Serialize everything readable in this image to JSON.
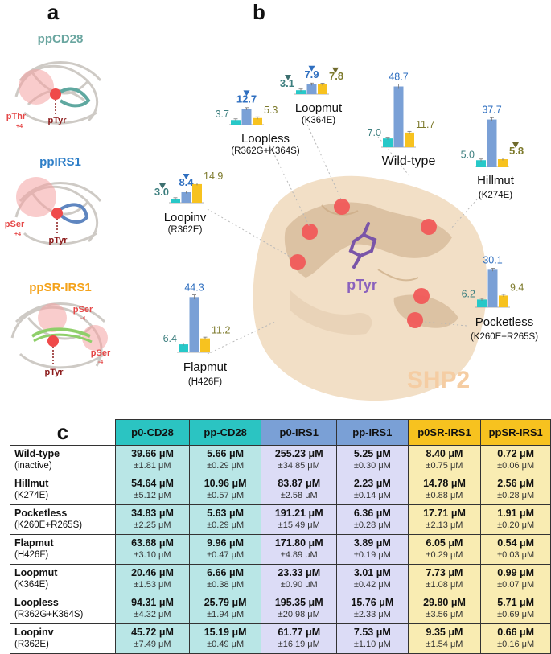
{
  "panels": {
    "a": "a",
    "b": "b",
    "c": "c"
  },
  "panel_a": {
    "structures": [
      {
        "title": "ppCD28",
        "color": "#6aa6a0",
        "pocket_label": "pThr",
        "pocket_sub": "+4",
        "center_label": "pTyr"
      },
      {
        "title": "ppIRS1",
        "color": "#2f7fc8",
        "pocket_label": "pSer",
        "pocket_sub": "+4",
        "center_label": "pTyr"
      },
      {
        "title": "ppSR-IRS1",
        "color": "#f4a21a",
        "pocket_label": "pSer",
        "pocket_sub": "-4",
        "pocket_label2": "pSer",
        "pocket_sub2": "-4",
        "center_label": "pTyr"
      }
    ]
  },
  "panel_b": {
    "protein_label": "SHP2",
    "ligand_label": "pTyr",
    "colors": {
      "cd28": "#27c8c8",
      "irs1": "#7aa0d6",
      "sr": "#f7c21f",
      "cd28_text": "#3d7f7f",
      "irs1_text": "#2f6fc0",
      "sr_text": "#7d7a2c",
      "arrow_cd28": "#3d6f6f",
      "arrow_irs1": "#2f6fc0",
      "arrow_sr": "#6f6a2c"
    }
  },
  "chart_data": {
    "type": "bar",
    "series": [
      {
        "name": "CD28",
        "color": "#27c8c8"
      },
      {
        "name": "IRS1",
        "color": "#7aa0d6"
      },
      {
        "name": "SR-IRS1",
        "color": "#f7c21f"
      }
    ],
    "groups": [
      {
        "name": "Wild-type",
        "sub": "",
        "values": [
          7.0,
          48.7,
          11.7
        ],
        "labels": [
          "7.0",
          "48.7",
          "11.7"
        ],
        "arrows": [
          false,
          false,
          false
        ]
      },
      {
        "name": "Hillmut",
        "sub": "(K274E)",
        "values": [
          5.0,
          37.7,
          5.8
        ],
        "labels": [
          "5.0",
          "37.7",
          "5.8"
        ],
        "arrows": [
          false,
          false,
          true
        ]
      },
      {
        "name": "Pocketless",
        "sub": "(K260E+R265S)",
        "values": [
          6.2,
          30.1,
          9.4
        ],
        "labels": [
          "6.2",
          "30.1",
          "9.4"
        ],
        "arrows": [
          false,
          false,
          false
        ]
      },
      {
        "name": "Flapmut",
        "sub": "(H426F)",
        "values": [
          6.4,
          44.3,
          11.2
        ],
        "labels": [
          "6.4",
          "44.3",
          "11.2"
        ],
        "arrows": [
          false,
          false,
          false
        ]
      },
      {
        "name": "Loopmut",
        "sub": "(K364E)",
        "values": [
          3.1,
          7.9,
          7.8
        ],
        "labels": [
          "3.1",
          "7.9",
          "7.8"
        ],
        "arrows": [
          true,
          true,
          true
        ]
      },
      {
        "name": "Loopless",
        "sub": "(R362G+K364S)",
        "values": [
          3.7,
          12.7,
          5.3
        ],
        "labels": [
          "3.7",
          "12.7",
          "5.3"
        ],
        "arrows": [
          false,
          true,
          false
        ]
      },
      {
        "name": "Loopinv",
        "sub": "(R362E)",
        "values": [
          3.0,
          8.4,
          14.9
        ],
        "labels": [
          "3.0",
          "8.4",
          "14.9"
        ],
        "arrows": [
          true,
          true,
          false
        ]
      }
    ]
  },
  "table": {
    "headers": [
      "p0-CD28",
      "pp-CD28",
      "p0-IRS1",
      "pp-IRS1",
      "p0SR-IRS1",
      "ppSR-IRS1"
    ],
    "rows": [
      {
        "name": "Wild-type",
        "sub": "(inactive)",
        "cells": [
          [
            "39.66 μM",
            "±1.81 μM"
          ],
          [
            "5.66 μM",
            "±0.29 μM"
          ],
          [
            "255.23 μM",
            "±34.85 μM"
          ],
          [
            "5.25 μM",
            "±0.30 μM"
          ],
          [
            "8.40 μM",
            "±0.75 μM"
          ],
          [
            "0.72 μM",
            "±0.06 μM"
          ]
        ]
      },
      {
        "name": "Hillmut",
        "sub": "(K274E)",
        "cells": [
          [
            "54.64 μM",
            "±5.12 μM"
          ],
          [
            "10.96 μM",
            "±0.57 μM"
          ],
          [
            "83.87 μM",
            "±2.58 μM"
          ],
          [
            "2.23 μM",
            "±0.14 μM"
          ],
          [
            "14.78 μM",
            "±0.88 μM"
          ],
          [
            "2.56 μM",
            "±0.28 μM"
          ]
        ]
      },
      {
        "name": "Pocketless",
        "sub": "(K260E+R265S)",
        "cells": [
          [
            "34.83 μM",
            "±2.25 μM"
          ],
          [
            "5.63 μM",
            "±0.29 μM"
          ],
          [
            "191.21 μM",
            "±15.49 μM"
          ],
          [
            "6.36 μM",
            "±0.28 μM"
          ],
          [
            "17.71 μM",
            "±2.13 μM"
          ],
          [
            "1.91 μM",
            "±0.20 μM"
          ]
        ]
      },
      {
        "name": "Flapmut",
        "sub": "(H426F)",
        "cells": [
          [
            "63.68 μM",
            "±3.10 μM"
          ],
          [
            "9.96 μM",
            "±0.47 μM"
          ],
          [
            "171.80 μM",
            "±4.89 μM"
          ],
          [
            "3.89 μM",
            "±0.19 μM"
          ],
          [
            "6.05 μM",
            "±0.29 μM"
          ],
          [
            "0.54 μM",
            "±0.03 μM"
          ]
        ]
      },
      {
        "name": "Loopmut",
        "sub": "(K364E)",
        "cells": [
          [
            "20.46 μM",
            "±1.53 μM"
          ],
          [
            "6.66 μM",
            "±0.38 μM"
          ],
          [
            "23.33 μM",
            "±0.90 μM"
          ],
          [
            "3.01 μM",
            "±0.42 μM"
          ],
          [
            "7.73 μM",
            "±1.08 μM"
          ],
          [
            "0.99 μM",
            "±0.07 μM"
          ]
        ]
      },
      {
        "name": "Loopless",
        "sub": "(R362G+K364S)",
        "cells": [
          [
            "94.31 μM",
            "±4.32 μM"
          ],
          [
            "25.79 μM",
            "±1.94 μM"
          ],
          [
            "195.35 μM",
            "±20.98 μM"
          ],
          [
            "15.76 μM",
            "±2.33 μM"
          ],
          [
            "29.80 μM",
            "±3.56 μM"
          ],
          [
            "5.71 μM",
            "±0.69 μM"
          ]
        ]
      },
      {
        "name": "Loopinv",
        "sub": "(R362E)",
        "cells": [
          [
            "45.72 μM",
            "±7.49 μM"
          ],
          [
            "15.19 μM",
            "±0.49 μM"
          ],
          [
            "61.77 μM",
            "±16.19 μM"
          ],
          [
            "7.53 μM",
            "±1.10 μM"
          ],
          [
            "9.35 μM",
            "±1.54 μM"
          ],
          [
            "0.66 μM",
            "±0.16 μM"
          ]
        ]
      }
    ]
  }
}
